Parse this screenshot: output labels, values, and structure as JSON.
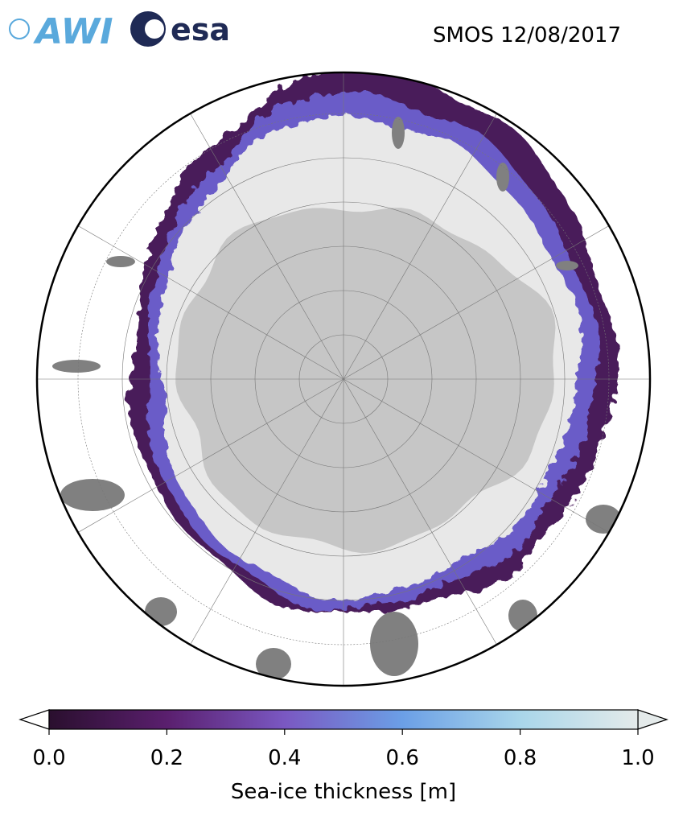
{
  "header": {
    "logos": [
      "AWI",
      "esa"
    ],
    "title": "SMOS 12/08/2017"
  },
  "colorbar": {
    "label": "Sea-ice thickness [m]",
    "lim": [
      0,
      1
    ],
    "ticks": [
      {
        "value": 0,
        "label": "0.0"
      },
      {
        "value": 0.2,
        "label": "0.2"
      },
      {
        "value": 0.4,
        "label": "0.4"
      },
      {
        "value": 0.6,
        "label": "0.6"
      },
      {
        "value": 0.8,
        "label": "0.8"
      },
      {
        "value": 1,
        "label": "1.0"
      }
    ],
    "colors": [
      "#2a0f2e",
      "#5a1f6e",
      "#7a58c2",
      "#6b9fe6",
      "#a9d6ea",
      "#e4eaea"
    ]
  }
}
